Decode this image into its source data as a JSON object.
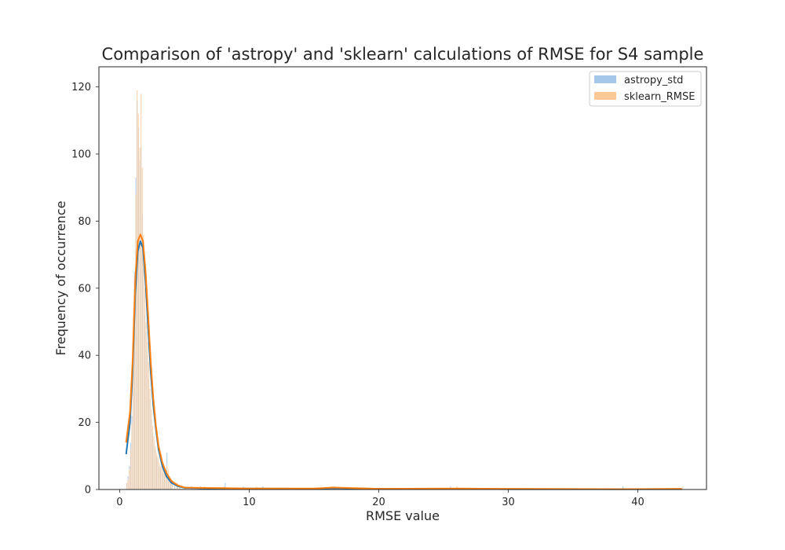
{
  "chart_data": {
    "type": "histogram",
    "title": "Comparison of 'astropy' and 'sklearn' calculations of RMSE for S4 sample",
    "xlabel": "RMSE value",
    "ylabel": "Frequency of occurrence",
    "xlim": [
      -1.6,
      45.3
    ],
    "ylim": [
      0,
      126
    ],
    "xticks": [
      0,
      10,
      20,
      30,
      40
    ],
    "yticks": [
      0,
      20,
      40,
      60,
      80,
      100,
      120
    ],
    "grid": false,
    "legend_position": "top-right",
    "bin_width": 0.1,
    "series": [
      {
        "name": "astropy_std",
        "bar_color": "#a6c8e8",
        "line_color": "#1f77b4",
        "bins": [
          [
            0.5,
            2
          ],
          [
            0.6,
            4
          ],
          [
            0.7,
            7
          ],
          [
            0.8,
            14
          ],
          [
            0.9,
            22
          ],
          [
            1.0,
            40
          ],
          [
            1.1,
            65
          ],
          [
            1.2,
            93
          ],
          [
            1.3,
            116
          ],
          [
            1.4,
            108
          ],
          [
            1.5,
            98
          ],
          [
            1.6,
            102
          ],
          [
            1.7,
            82
          ],
          [
            1.8,
            66
          ],
          [
            1.9,
            52
          ],
          [
            2.0,
            47
          ],
          [
            2.1,
            40
          ],
          [
            2.2,
            33
          ],
          [
            2.3,
            27
          ],
          [
            2.4,
            21
          ],
          [
            2.5,
            17
          ],
          [
            2.6,
            14
          ],
          [
            2.7,
            12
          ],
          [
            2.8,
            10
          ],
          [
            2.9,
            9
          ],
          [
            3.0,
            7
          ],
          [
            3.1,
            6
          ],
          [
            3.2,
            6
          ],
          [
            3.3,
            5
          ],
          [
            3.4,
            4
          ],
          [
            3.5,
            6
          ],
          [
            3.6,
            11
          ],
          [
            3.7,
            4
          ],
          [
            3.8,
            3
          ],
          [
            3.9,
            3
          ],
          [
            4.0,
            2
          ],
          [
            4.2,
            2
          ],
          [
            4.4,
            1
          ],
          [
            4.6,
            1
          ],
          [
            5.0,
            1
          ],
          [
            5.5,
            1
          ],
          [
            6.2,
            1
          ],
          [
            8.1,
            2
          ],
          [
            9.5,
            1
          ],
          [
            11.0,
            1
          ],
          [
            16.5,
            1
          ],
          [
            25.5,
            1
          ],
          [
            38.8,
            1
          ]
        ],
        "kde": [
          [
            0.5,
            10.5
          ],
          [
            0.8,
            20
          ],
          [
            1.0,
            35
          ],
          [
            1.2,
            58
          ],
          [
            1.4,
            71
          ],
          [
            1.6,
            74
          ],
          [
            1.8,
            72
          ],
          [
            2.0,
            62
          ],
          [
            2.2,
            48
          ],
          [
            2.4,
            35
          ],
          [
            2.6,
            25
          ],
          [
            2.8,
            18
          ],
          [
            3.0,
            12
          ],
          [
            3.3,
            7
          ],
          [
            3.6,
            4
          ],
          [
            4.0,
            2
          ],
          [
            4.5,
            1
          ],
          [
            5.0,
            0.5
          ],
          [
            6.0,
            0.4
          ],
          [
            8.0,
            0.3
          ],
          [
            10.0,
            0.3
          ],
          [
            15.0,
            0.2
          ],
          [
            16.5,
            0.4
          ],
          [
            20.0,
            0.2
          ],
          [
            25.5,
            0.2
          ],
          [
            30.0,
            0.1
          ],
          [
            38.8,
            0.1
          ],
          [
            43.4,
            0.1
          ]
        ]
      },
      {
        "name": "sklearn_RMSE",
        "bar_color": "#fcc896",
        "line_color": "#ff7f0e",
        "bins": [
          [
            0.5,
            2
          ],
          [
            0.6,
            3
          ],
          [
            0.7,
            6
          ],
          [
            0.8,
            12
          ],
          [
            0.9,
            20
          ],
          [
            1.0,
            36
          ],
          [
            1.1,
            60
          ],
          [
            1.2,
            88
          ],
          [
            1.3,
            119
          ],
          [
            1.4,
            112
          ],
          [
            1.5,
            102
          ],
          [
            1.6,
            118
          ],
          [
            1.7,
            96
          ],
          [
            1.8,
            76
          ],
          [
            1.9,
            60
          ],
          [
            2.0,
            50
          ],
          [
            2.1,
            44
          ],
          [
            2.2,
            38
          ],
          [
            2.3,
            30
          ],
          [
            2.4,
            24
          ],
          [
            2.5,
            19
          ],
          [
            2.6,
            16
          ],
          [
            2.7,
            13
          ],
          [
            2.8,
            11
          ],
          [
            2.9,
            10
          ],
          [
            3.0,
            8
          ],
          [
            3.1,
            7
          ],
          [
            3.2,
            7
          ],
          [
            3.3,
            6
          ],
          [
            3.4,
            5
          ],
          [
            3.5,
            5
          ],
          [
            3.6,
            7
          ],
          [
            3.7,
            6
          ],
          [
            3.8,
            4
          ],
          [
            3.9,
            3
          ],
          [
            4.0,
            3
          ],
          [
            4.2,
            2
          ],
          [
            4.4,
            2
          ],
          [
            4.6,
            1
          ],
          [
            5.0,
            1
          ],
          [
            5.5,
            1
          ],
          [
            6.5,
            1
          ],
          [
            8.0,
            1
          ],
          [
            10.5,
            1
          ],
          [
            16.3,
            1
          ],
          [
            16.6,
            1
          ],
          [
            26.0,
            1
          ],
          [
            43.4,
            1
          ]
        ],
        "kde": [
          [
            0.5,
            14
          ],
          [
            0.8,
            23
          ],
          [
            1.0,
            38
          ],
          [
            1.2,
            62
          ],
          [
            1.4,
            74
          ],
          [
            1.6,
            76
          ],
          [
            1.8,
            74
          ],
          [
            2.0,
            65
          ],
          [
            2.2,
            52
          ],
          [
            2.4,
            38
          ],
          [
            2.6,
            27
          ],
          [
            2.8,
            19
          ],
          [
            3.0,
            13
          ],
          [
            3.3,
            8
          ],
          [
            3.6,
            5
          ],
          [
            4.0,
            2.5
          ],
          [
            4.5,
            1.2
          ],
          [
            5.0,
            0.6
          ],
          [
            6.0,
            0.5
          ],
          [
            8.0,
            0.4
          ],
          [
            10.0,
            0.3
          ],
          [
            15.0,
            0.3
          ],
          [
            16.5,
            0.6
          ],
          [
            20.0,
            0.2
          ],
          [
            26.0,
            0.3
          ],
          [
            30.0,
            0.2
          ],
          [
            38.8,
            0.1
          ],
          [
            43.4,
            0.2
          ]
        ]
      }
    ]
  }
}
